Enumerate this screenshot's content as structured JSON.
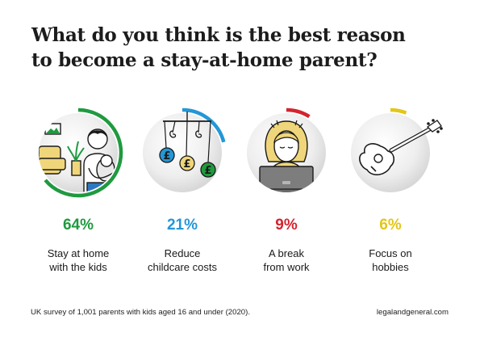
{
  "title": {
    "line1": "What do you think is the best reason",
    "line2": "to become a stay-at-home parent?"
  },
  "chart_data": {
    "type": "radial-progress",
    "title": "What do you think is the best reason to become a stay-at-home parent?",
    "unit": "%",
    "items": [
      {
        "value": 64,
        "display": "64%",
        "label_line1": "Stay at home",
        "label_line2": "with the kids",
        "color": "#1f9a3f",
        "icon": "parent-holding-baby-icon"
      },
      {
        "value": 21,
        "display": "21%",
        "label_line1": "Reduce",
        "label_line2": "childcare costs",
        "color": "#2497d6",
        "icon": "pound-mobile-icon"
      },
      {
        "value": 9,
        "display": "9%",
        "label_line1": "A break",
        "label_line2": "from work",
        "color": "#d3242f",
        "icon": "person-at-laptop-icon"
      },
      {
        "value": 6,
        "display": "6%",
        "label_line1": "Focus on",
        "label_line2": "hobbies",
        "color": "#e3c619",
        "icon": "guitar-icon"
      }
    ]
  },
  "footer": {
    "source": "UK survey of 1,001 parents with kids aged 16 and under (2020).",
    "site": "legalandgeneral.com"
  }
}
